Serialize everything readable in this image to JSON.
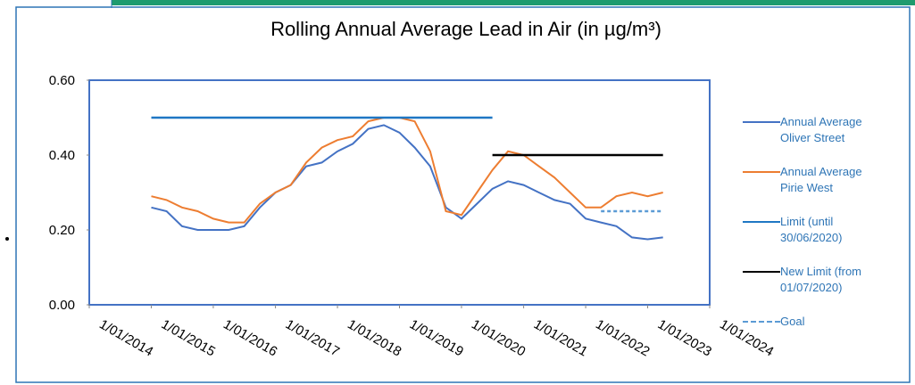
{
  "chart_data": {
    "type": "line",
    "title": "Rolling Annual Average Lead in Air (in µg/m³)",
    "x": [
      "2015-01-01",
      "2015-04-01",
      "2015-07-01",
      "2015-10-01",
      "2016-01-01",
      "2016-04-01",
      "2016-07-01",
      "2016-10-01",
      "2017-01-01",
      "2017-04-01",
      "2017-07-01",
      "2017-10-01",
      "2018-01-01",
      "2018-04-01",
      "2018-07-01",
      "2018-10-01",
      "2019-01-01",
      "2019-04-01",
      "2019-07-01",
      "2019-10-01",
      "2020-01-01",
      "2020-04-01",
      "2020-07-01",
      "2020-10-01",
      "2021-01-01",
      "2021-04-01",
      "2021-07-01",
      "2021-10-01",
      "2022-01-01",
      "2022-04-01",
      "2022-07-01",
      "2022-10-01",
      "2023-01-01",
      "2023-04-01"
    ],
    "series": [
      {
        "name": "Annual Average Oliver Street",
        "color": "#4472c4",
        "values": [
          0.26,
          0.25,
          0.21,
          0.2,
          0.2,
          0.2,
          0.21,
          0.26,
          0.3,
          0.32,
          0.37,
          0.38,
          0.41,
          0.43,
          0.47,
          0.48,
          0.46,
          0.42,
          0.37,
          0.26,
          0.23,
          0.27,
          0.31,
          0.33,
          0.32,
          0.3,
          0.28,
          0.27,
          0.23,
          0.22,
          0.21,
          0.18,
          0.175,
          0.18
        ]
      },
      {
        "name": "Annual Average Pirie West",
        "color": "#ed7d31",
        "values": [
          0.29,
          0.28,
          0.26,
          0.25,
          0.23,
          0.22,
          0.22,
          0.27,
          0.3,
          0.32,
          0.38,
          0.42,
          0.44,
          0.45,
          0.49,
          0.5,
          0.5,
          0.49,
          0.41,
          0.25,
          0.24,
          0.3,
          0.36,
          0.41,
          0.4,
          0.37,
          0.34,
          0.3,
          0.26,
          0.26,
          0.29,
          0.3,
          0.29,
          0.3
        ]
      },
      {
        "name": "Limit (until 30/06/2020)",
        "color": "#1f77c4",
        "values": [
          0.5,
          0.5,
          0.5,
          0.5,
          0.5,
          0.5,
          0.5,
          0.5,
          0.5,
          0.5,
          0.5,
          0.5,
          0.5,
          0.5,
          0.5,
          0.5,
          0.5,
          0.5,
          0.5,
          0.5,
          0.5,
          0.5,
          0.5,
          null,
          null,
          null,
          null,
          null,
          null,
          null,
          null,
          null,
          null,
          null
        ]
      },
      {
        "name": "New Limit (from 01/07/2020)",
        "color": "#000000",
        "values": [
          null,
          null,
          null,
          null,
          null,
          null,
          null,
          null,
          null,
          null,
          null,
          null,
          null,
          null,
          null,
          null,
          null,
          null,
          null,
          null,
          null,
          null,
          0.4,
          0.4,
          0.4,
          0.4,
          0.4,
          0.4,
          0.4,
          0.4,
          0.4,
          0.4,
          0.4,
          0.4
        ]
      },
      {
        "name": "Goal",
        "color": "#5b9bd5",
        "dashed": true,
        "values": [
          null,
          null,
          null,
          null,
          null,
          null,
          null,
          null,
          null,
          null,
          null,
          null,
          null,
          null,
          null,
          null,
          null,
          null,
          null,
          null,
          null,
          null,
          null,
          null,
          null,
          null,
          null,
          null,
          null,
          0.25,
          0.25,
          0.25,
          0.25,
          0.25
        ]
      }
    ],
    "xlim": [
      "2014-01-01",
      "2024-01-01"
    ],
    "xticks": [
      {
        "value": "2014-01-01",
        "label": "1/01/2014"
      },
      {
        "value": "2015-01-01",
        "label": "1/01/2015"
      },
      {
        "value": "2016-01-01",
        "label": "1/01/2016"
      },
      {
        "value": "2017-01-01",
        "label": "1/01/2017"
      },
      {
        "value": "2018-01-01",
        "label": "1/01/2018"
      },
      {
        "value": "2019-01-01",
        "label": "1/01/2019"
      },
      {
        "value": "2020-01-01",
        "label": "1/01/2020"
      },
      {
        "value": "2021-01-01",
        "label": "1/01/2021"
      },
      {
        "value": "2022-01-01",
        "label": "1/01/2022"
      },
      {
        "value": "2023-01-01",
        "label": "1/01/2023"
      },
      {
        "value": "2024-01-01",
        "label": "1/01/2024"
      }
    ],
    "ylim": [
      0,
      0.6
    ],
    "yticks": [
      {
        "value": 0,
        "label": "0.00"
      },
      {
        "value": 0.2,
        "label": "0.20"
      },
      {
        "value": 0.4,
        "label": "0.40"
      },
      {
        "value": 0.6,
        "label": "0.60"
      }
    ],
    "legend": "right"
  }
}
